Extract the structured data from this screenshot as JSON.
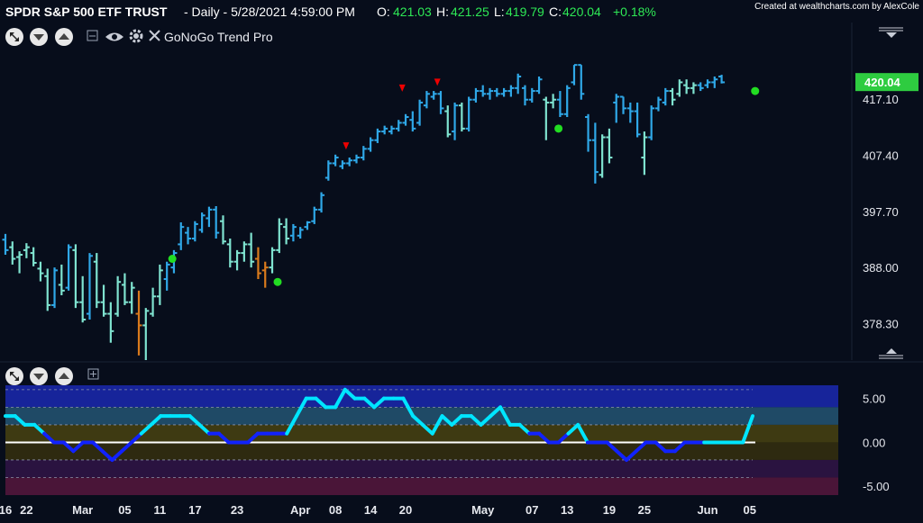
{
  "header": {
    "symbol": "SPDR S&P 500 ETF TRUST",
    "info": "- Daily - 5/28/2021 4:59:00 PM",
    "open_label": "O:",
    "open": "421.03",
    "high_label": "H:",
    "high": "421.25",
    "low_label": "L:",
    "low": "419.79",
    "close_label": "C:",
    "close": "420.04",
    "change": "+0.18%",
    "credit": "Created at wealthcharts.com by AlexCole"
  },
  "toolbar": {
    "indicator_name": "GoNoGo Trend Pro",
    "icons": [
      "expand-icon",
      "chevron-down-icon",
      "chevron-up-icon",
      "minimize-icon",
      "eye-icon",
      "gear-icon",
      "close-icon"
    ]
  },
  "colors": {
    "background": "#070d1b",
    "go_strong": "#2fa8e8",
    "go_weak": "#7fe3d0",
    "nogo_strong": "#d97a1c",
    "price_tag": "#2ecc40",
    "osc_line_high": "#00e5ff",
    "osc_line_low": "#1122ff",
    "dot": "#22dd22",
    "marker": "#ee0000"
  },
  "chart_data": [
    {
      "type": "ohlc",
      "title": "SPDR S&P 500 ETF TRUST",
      "ylim": [
        372,
        428
      ],
      "yticks": [
        "417.10",
        "407.40",
        "397.70",
        "388.00",
        "378.30"
      ],
      "last_price": "420.04",
      "bars": [
        {
          "o": 392.8,
          "h": 393.8,
          "l": 390.2,
          "c": 391.0,
          "g": "a"
        },
        {
          "o": 391.5,
          "h": 392.5,
          "l": 388.5,
          "c": 389.5,
          "g": "b"
        },
        {
          "o": 389.8,
          "h": 390.8,
          "l": 387.0,
          "c": 390.2,
          "g": "b"
        },
        {
          "o": 391.0,
          "h": 392.2,
          "l": 389.6,
          "c": 391.5,
          "g": "b"
        },
        {
          "o": 390.5,
          "h": 391.5,
          "l": 388.2,
          "c": 388.8,
          "g": "b"
        },
        {
          "o": 387.8,
          "h": 389.0,
          "l": 385.6,
          "c": 387.0,
          "g": "b"
        },
        {
          "o": 386.5,
          "h": 387.8,
          "l": 380.5,
          "c": 381.5,
          "g": "b"
        },
        {
          "o": 381.5,
          "h": 388.0,
          "l": 381.0,
          "c": 387.5,
          "g": "a"
        },
        {
          "o": 385.0,
          "h": 388.5,
          "l": 383.2,
          "c": 384.0,
          "g": "b"
        },
        {
          "o": 384.5,
          "h": 392.0,
          "l": 384.0,
          "c": 391.5,
          "g": "a"
        },
        {
          "o": 391.0,
          "h": 392.0,
          "l": 381.0,
          "c": 382.0,
          "g": "b"
        },
        {
          "o": 382.0,
          "h": 386.5,
          "l": 378.5,
          "c": 379.0,
          "g": "b"
        },
        {
          "o": 380.0,
          "h": 390.5,
          "l": 379.0,
          "c": 390.0,
          "g": "a"
        },
        {
          "o": 389.0,
          "h": 390.5,
          "l": 381.0,
          "c": 382.0,
          "g": "b"
        },
        {
          "o": 382.0,
          "h": 385.0,
          "l": 379.5,
          "c": 380.0,
          "g": "b"
        },
        {
          "o": 380.0,
          "h": 382.0,
          "l": 375.0,
          "c": 377.0,
          "g": "b"
        },
        {
          "o": 380.0,
          "h": 386.5,
          "l": 379.5,
          "c": 385.5,
          "g": "b"
        },
        {
          "o": 385.0,
          "h": 387.0,
          "l": 381.5,
          "c": 382.0,
          "g": "b"
        },
        {
          "o": 382.0,
          "h": 385.5,
          "l": 380.0,
          "c": 384.5,
          "g": "b"
        },
        {
          "o": 380.0,
          "h": 384.0,
          "l": 372.8,
          "c": 378.0,
          "g": "c"
        },
        {
          "o": 378.0,
          "h": 381.0,
          "l": 372.0,
          "c": 380.5,
          "g": "b"
        },
        {
          "o": 380.0,
          "h": 384.5,
          "l": 379.5,
          "c": 383.0,
          "g": "b"
        },
        {
          "o": 383.0,
          "h": 388.5,
          "l": 381.5,
          "c": 387.5,
          "g": "b"
        },
        {
          "o": 386.0,
          "h": 389.0,
          "l": 384.0,
          "c": 388.5,
          "g": "a"
        },
        {
          "o": 388.0,
          "h": 391.0,
          "l": 387.0,
          "c": 390.5,
          "g": "a"
        },
        {
          "o": 392.0,
          "h": 395.8,
          "l": 391.0,
          "c": 395.0,
          "g": "a"
        },
        {
          "o": 394.0,
          "h": 395.0,
          "l": 392.0,
          "c": 393.0,
          "g": "a"
        },
        {
          "o": 393.0,
          "h": 396.0,
          "l": 392.5,
          "c": 395.5,
          "g": "a"
        },
        {
          "o": 394.5,
          "h": 397.5,
          "l": 394.0,
          "c": 397.0,
          "g": "a"
        },
        {
          "o": 396.5,
          "h": 398.5,
          "l": 395.0,
          "c": 398.0,
          "g": "a"
        },
        {
          "o": 398.0,
          "h": 398.6,
          "l": 393.0,
          "c": 394.0,
          "g": "a"
        },
        {
          "o": 396.0,
          "h": 397.0,
          "l": 392.0,
          "c": 392.5,
          "g": "b"
        },
        {
          "o": 392.0,
          "h": 393.0,
          "l": 388.0,
          "c": 389.0,
          "g": "b"
        },
        {
          "o": 389.0,
          "h": 391.0,
          "l": 387.5,
          "c": 390.5,
          "g": "b"
        },
        {
          "o": 390.5,
          "h": 392.5,
          "l": 389.0,
          "c": 392.0,
          "g": "b"
        },
        {
          "o": 392.0,
          "h": 394.0,
          "l": 388.0,
          "c": 389.0,
          "g": "b"
        },
        {
          "o": 389.5,
          "h": 391.5,
          "l": 386.0,
          "c": 387.0,
          "g": "c"
        },
        {
          "o": 387.5,
          "h": 389.0,
          "l": 384.5,
          "c": 388.0,
          "g": "c"
        },
        {
          "o": 388.0,
          "h": 391.5,
          "l": 387.0,
          "c": 391.0,
          "g": "b"
        },
        {
          "o": 391.0,
          "h": 396.5,
          "l": 390.5,
          "c": 395.5,
          "g": "b"
        },
        {
          "o": 395.0,
          "h": 396.5,
          "l": 392.0,
          "c": 393.0,
          "g": "b"
        },
        {
          "o": 393.5,
          "h": 395.5,
          "l": 392.5,
          "c": 395.0,
          "g": "a"
        },
        {
          "o": 393.5,
          "h": 395.0,
          "l": 393.0,
          "c": 394.5,
          "g": "a"
        },
        {
          "o": 395.0,
          "h": 396.0,
          "l": 394.5,
          "c": 395.8,
          "g": "a"
        },
        {
          "o": 396.0,
          "h": 398.5,
          "l": 395.5,
          "c": 398.0,
          "g": "a"
        },
        {
          "o": 398.0,
          "h": 401.0,
          "l": 397.5,
          "c": 400.5,
          "g": "a"
        },
        {
          "o": 403.5,
          "h": 406.5,
          "l": 403.0,
          "c": 406.0,
          "g": "a"
        },
        {
          "o": 406.0,
          "h": 407.5,
          "l": 405.5,
          "c": 407.0,
          "g": "a"
        },
        {
          "o": 405.5,
          "h": 406.5,
          "l": 405.0,
          "c": 406.0,
          "g": "a"
        },
        {
          "o": 406.0,
          "h": 407.0,
          "l": 405.5,
          "c": 406.5,
          "g": "a"
        },
        {
          "o": 406.5,
          "h": 407.5,
          "l": 406.0,
          "c": 407.0,
          "g": "a"
        },
        {
          "o": 407.0,
          "h": 409.0,
          "l": 406.5,
          "c": 408.5,
          "g": "a"
        },
        {
          "o": 408.5,
          "h": 410.5,
          "l": 408.0,
          "c": 410.0,
          "g": "a"
        },
        {
          "o": 410.0,
          "h": 412.0,
          "l": 409.5,
          "c": 411.5,
          "g": "a"
        },
        {
          "o": 411.5,
          "h": 412.5,
          "l": 411.0,
          "c": 412.0,
          "g": "a"
        },
        {
          "o": 411.5,
          "h": 412.5,
          "l": 411.0,
          "c": 412.0,
          "g": "a"
        },
        {
          "o": 412.0,
          "h": 413.5,
          "l": 411.5,
          "c": 413.0,
          "g": "a"
        },
        {
          "o": 413.0,
          "h": 414.5,
          "l": 412.5,
          "c": 414.0,
          "g": "a"
        },
        {
          "o": 413.5,
          "h": 415.0,
          "l": 411.5,
          "c": 412.0,
          "g": "a"
        },
        {
          "o": 413.0,
          "h": 417.0,
          "l": 412.5,
          "c": 416.5,
          "g": "a"
        },
        {
          "o": 416.0,
          "h": 418.5,
          "l": 415.5,
          "c": 418.0,
          "g": "a"
        },
        {
          "o": 417.5,
          "h": 418.5,
          "l": 417.0,
          "c": 418.0,
          "g": "a"
        },
        {
          "o": 418.0,
          "h": 418.5,
          "l": 414.5,
          "c": 415.5,
          "g": "a"
        },
        {
          "o": 415.0,
          "h": 416.0,
          "l": 410.5,
          "c": 411.0,
          "g": "b"
        },
        {
          "o": 411.5,
          "h": 416.5,
          "l": 410.0,
          "c": 416.0,
          "g": "a"
        },
        {
          "o": 416.0,
          "h": 416.5,
          "l": 411.5,
          "c": 412.0,
          "g": "b"
        },
        {
          "o": 412.0,
          "h": 417.5,
          "l": 411.5,
          "c": 417.0,
          "g": "a"
        },
        {
          "o": 417.0,
          "h": 419.0,
          "l": 416.5,
          "c": 418.5,
          "g": "a"
        },
        {
          "o": 418.5,
          "h": 419.5,
          "l": 417.5,
          "c": 418.0,
          "g": "a"
        },
        {
          "o": 418.0,
          "h": 419.0,
          "l": 417.0,
          "c": 418.5,
          "g": "a"
        },
        {
          "o": 418.5,
          "h": 419.0,
          "l": 417.5,
          "c": 418.0,
          "g": "a"
        },
        {
          "o": 418.0,
          "h": 419.0,
          "l": 417.5,
          "c": 418.5,
          "g": "a"
        },
        {
          "o": 418.5,
          "h": 419.5,
          "l": 417.5,
          "c": 419.0,
          "g": "a"
        },
        {
          "o": 419.0,
          "h": 421.5,
          "l": 418.0,
          "c": 421.0,
          "g": "a"
        },
        {
          "o": 419.0,
          "h": 419.5,
          "l": 416.0,
          "c": 417.0,
          "g": "a"
        },
        {
          "o": 417.0,
          "h": 419.0,
          "l": 416.5,
          "c": 418.5,
          "g": "a"
        },
        {
          "o": 418.5,
          "h": 421.0,
          "l": 418.0,
          "c": 420.5,
          "g": "a"
        },
        {
          "o": 417.0,
          "h": 417.5,
          "l": 410.0,
          "c": 416.5,
          "g": "b"
        },
        {
          "o": 416.5,
          "h": 418.0,
          "l": 415.5,
          "c": 417.0,
          "g": "b"
        },
        {
          "o": 417.0,
          "h": 418.5,
          "l": 414.0,
          "c": 414.5,
          "g": "a"
        },
        {
          "o": 414.5,
          "h": 419.5,
          "l": 414.0,
          "c": 419.0,
          "g": "a"
        },
        {
          "o": 420.0,
          "h": 423.0,
          "l": 419.5,
          "c": 423.0,
          "g": "a"
        },
        {
          "o": 423.0,
          "h": 423.0,
          "l": 417.0,
          "c": 418.0,
          "g": "a"
        },
        {
          "o": 414.0,
          "h": 414.5,
          "l": 408.0,
          "c": 410.0,
          "g": "a"
        },
        {
          "o": 410.0,
          "h": 413.0,
          "l": 402.5,
          "c": 404.5,
          "g": "a"
        },
        {
          "o": 404.0,
          "h": 411.0,
          "l": 403.5,
          "c": 410.5,
          "g": "b"
        },
        {
          "o": 410.5,
          "h": 412.0,
          "l": 406.0,
          "c": 407.0,
          "g": "b"
        },
        {
          "o": 416.5,
          "h": 418.0,
          "l": 413.0,
          "c": 417.5,
          "g": "a"
        },
        {
          "o": 417.5,
          "h": 417.5,
          "l": 414.5,
          "c": 415.5,
          "g": "a"
        },
        {
          "o": 415.5,
          "h": 416.5,
          "l": 413.0,
          "c": 415.0,
          "g": "a"
        },
        {
          "o": 415.0,
          "h": 416.5,
          "l": 410.5,
          "c": 411.0,
          "g": "a"
        },
        {
          "o": 407.0,
          "h": 411.5,
          "l": 404.0,
          "c": 410.5,
          "g": "b"
        },
        {
          "o": 410.5,
          "h": 416.0,
          "l": 410.0,
          "c": 415.5,
          "g": "a"
        },
        {
          "o": 415.5,
          "h": 417.5,
          "l": 415.0,
          "c": 417.0,
          "g": "a"
        },
        {
          "o": 416.5,
          "h": 419.0,
          "l": 416.0,
          "c": 418.5,
          "g": "a"
        },
        {
          "o": 418.5,
          "h": 419.0,
          "l": 416.0,
          "c": 417.0,
          "g": "b"
        },
        {
          "o": 418.0,
          "h": 420.5,
          "l": 417.5,
          "c": 420.0,
          "g": "b"
        },
        {
          "o": 419.5,
          "h": 420.5,
          "l": 418.0,
          "c": 419.0,
          "g": "b"
        },
        {
          "o": 419.0,
          "h": 420.0,
          "l": 418.0,
          "c": 419.5,
          "g": "b"
        },
        {
          "o": 419.5,
          "h": 420.0,
          "l": 418.5,
          "c": 419.0,
          "g": "a"
        },
        {
          "o": 419.5,
          "h": 420.5,
          "l": 419.0,
          "c": 420.0,
          "g": "a"
        },
        {
          "o": 420.0,
          "h": 421.0,
          "l": 419.0,
          "c": 420.5,
          "g": "a"
        },
        {
          "o": 421.0,
          "h": 421.3,
          "l": 419.8,
          "c": 420.0,
          "g": "a"
        }
      ],
      "dots": [
        {
          "i": 23,
          "y": 389.5
        },
        {
          "i": 38,
          "y": 385.5
        },
        {
          "i": 78,
          "y": 412.0
        },
        {
          "i": 106,
          "y": 418.5
        }
      ],
      "markers": [
        {
          "i": 48,
          "y": 409.0
        },
        {
          "i": 56,
          "y": 419.0
        },
        {
          "i": 61,
          "y": 420.0
        }
      ],
      "x_ticks": [
        {
          "i": 0,
          "label": "16"
        },
        {
          "i": 3,
          "label": "22"
        },
        {
          "i": 11,
          "label": "Mar"
        },
        {
          "i": 17,
          "label": "05"
        },
        {
          "i": 22,
          "label": "11"
        },
        {
          "i": 27,
          "label": "17"
        },
        {
          "i": 33,
          "label": "23"
        },
        {
          "i": 42,
          "label": "Apr"
        },
        {
          "i": 47,
          "label": "08"
        },
        {
          "i": 52,
          "label": "14"
        },
        {
          "i": 57,
          "label": "20"
        },
        {
          "i": 68,
          "label": "May"
        },
        {
          "i": 75,
          "label": "07"
        },
        {
          "i": 80,
          "label": "13"
        },
        {
          "i": 86,
          "label": "19"
        },
        {
          "i": 91,
          "label": "25"
        },
        {
          "i": 100,
          "label": "Jun"
        },
        {
          "i": 106,
          "label": "05"
        }
      ]
    },
    {
      "type": "line",
      "ylim": [
        -6.0,
        6.5
      ],
      "yticks": [
        "5.00",
        "0.00",
        "-5.00"
      ],
      "zero_line": 0,
      "values": [
        3,
        3,
        2,
        2,
        1,
        0,
        0,
        -1,
        0,
        0,
        -1,
        -2,
        -1,
        0,
        1,
        2,
        3,
        3,
        3,
        3,
        2,
        1,
        1,
        0,
        0,
        0,
        1,
        1,
        1,
        1,
        3,
        5,
        5,
        4,
        4,
        6,
        5,
        5,
        4,
        5,
        5,
        5,
        3,
        2,
        1,
        3,
        2,
        3,
        3,
        2,
        3,
        4,
        2,
        2,
        1,
        1,
        0,
        0,
        1,
        2,
        0,
        0,
        0,
        -1,
        -2,
        -1,
        0,
        0,
        -1,
        -1,
        0,
        0,
        0,
        0,
        0,
        0,
        0,
        3
      ]
    }
  ]
}
